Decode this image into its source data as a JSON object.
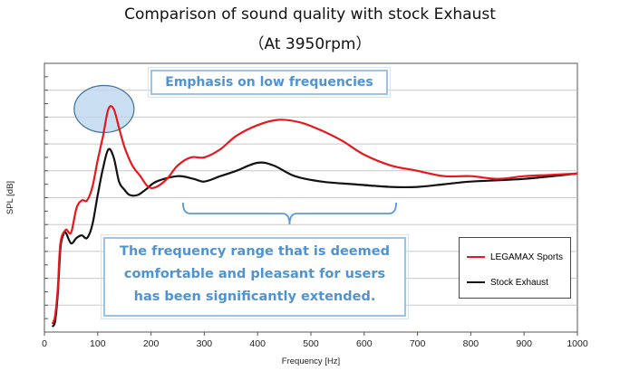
{
  "chart_data": {
    "type": "line",
    "title": "Comparison of sound quality with stock Exhaust",
    "subtitle": "（At 3950rpm）",
    "xlabel": "Frequency [Hz]",
    "ylabel": "SPL [dB]",
    "xlim": [
      0,
      1000
    ],
    "xticks": [
      0,
      100,
      200,
      300,
      400,
      500,
      600,
      700,
      800,
      900,
      1000
    ],
    "ylim": [
      0,
      10
    ],
    "yticks_labeled": false,
    "grid": "horizontal",
    "legend_position": "right-lower",
    "series": [
      {
        "name": "LEGAMAX Sports",
        "color": "#e8171d",
        "points": [
          [
            15,
            0.3
          ],
          [
            20,
            0.6
          ],
          [
            25,
            1.6
          ],
          [
            30,
            3.3
          ],
          [
            40,
            3.8
          ],
          [
            50,
            3.7
          ],
          [
            60,
            4.6
          ],
          [
            70,
            4.9
          ],
          [
            80,
            4.9
          ],
          [
            90,
            5.4
          ],
          [
            100,
            6.4
          ],
          [
            110,
            7.3
          ],
          [
            120,
            8.3
          ],
          [
            130,
            8.3
          ],
          [
            140,
            7.6
          ],
          [
            150,
            6.9
          ],
          [
            165,
            6.2
          ],
          [
            180,
            5.8
          ],
          [
            195,
            5.4
          ],
          [
            210,
            5.4
          ],
          [
            230,
            5.7
          ],
          [
            250,
            6.2
          ],
          [
            275,
            6.5
          ],
          [
            300,
            6.5
          ],
          [
            330,
            6.8
          ],
          [
            360,
            7.3
          ],
          [
            400,
            7.7
          ],
          [
            440,
            7.9
          ],
          [
            480,
            7.8
          ],
          [
            520,
            7.5
          ],
          [
            560,
            7.1
          ],
          [
            600,
            6.6
          ],
          [
            650,
            6.2
          ],
          [
            700,
            6.0
          ],
          [
            750,
            5.8
          ],
          [
            800,
            5.8
          ],
          [
            850,
            5.7
          ],
          [
            900,
            5.8
          ],
          [
            950,
            5.85
          ],
          [
            1000,
            5.9
          ]
        ]
      },
      {
        "name": "Stock Exhaust",
        "color": "#111111",
        "points": [
          [
            15,
            0.2
          ],
          [
            20,
            0.4
          ],
          [
            25,
            1.4
          ],
          [
            30,
            3.1
          ],
          [
            35,
            3.6
          ],
          [
            40,
            3.7
          ],
          [
            50,
            3.3
          ],
          [
            60,
            3.5
          ],
          [
            70,
            3.6
          ],
          [
            80,
            3.5
          ],
          [
            90,
            4.0
          ],
          [
            100,
            5.1
          ],
          [
            110,
            6.1
          ],
          [
            120,
            6.8
          ],
          [
            130,
            6.5
          ],
          [
            140,
            5.6
          ],
          [
            150,
            5.3
          ],
          [
            160,
            5.1
          ],
          [
            175,
            5.1
          ],
          [
            190,
            5.3
          ],
          [
            210,
            5.6
          ],
          [
            250,
            5.8
          ],
          [
            280,
            5.7
          ],
          [
            300,
            5.6
          ],
          [
            330,
            5.8
          ],
          [
            360,
            6.0
          ],
          [
            400,
            6.3
          ],
          [
            430,
            6.2
          ],
          [
            470,
            5.8
          ],
          [
            520,
            5.6
          ],
          [
            580,
            5.5
          ],
          [
            650,
            5.4
          ],
          [
            700,
            5.4
          ],
          [
            750,
            5.5
          ],
          [
            800,
            5.6
          ],
          [
            900,
            5.7
          ],
          [
            1000,
            5.9
          ]
        ]
      }
    ],
    "annotations": [
      "Emphasis on low frequencies",
      "The frequency range that is deemed comfortable and pleasant for users has been significantly extended."
    ]
  },
  "callouts": {
    "top": "Emphasis on low frequencies",
    "bottom_line1": "The frequency range that is deemed",
    "bottom_line2": "comfortable and pleasant for users",
    "bottom_line3": "has been significantly extended."
  }
}
